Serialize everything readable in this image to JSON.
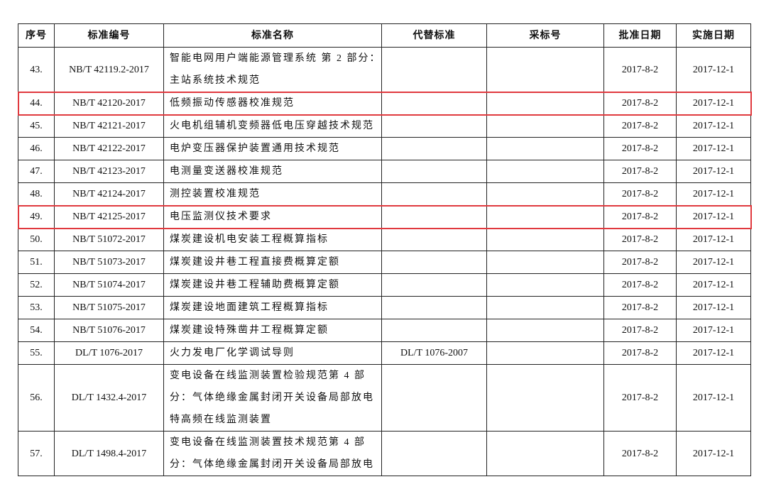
{
  "table": {
    "header": [
      "序号",
      "标准编号",
      "标准名称",
      "代替标准",
      "采标号",
      "批准日期",
      "实施日期"
    ],
    "rows": [
      {
        "no": "43.",
        "code": "NB/T 42119.2-2017",
        "name": [
          "智能电网用户端能源管理系统 第 2 部分：",
          "主站系统技术规范"
        ],
        "approved": "2017-8-2",
        "effective": "2017-12-1"
      },
      {
        "no": "44.",
        "code": "NB/T 42120-2017",
        "name": [
          "低频振动传感器校准规范"
        ],
        "approved": "2017-8-2",
        "effective": "2017-12-1"
      },
      {
        "no": "45.",
        "code": "NB/T 42121-2017",
        "name": [
          "火电机组辅机变频器低电压穿越技术规范"
        ],
        "approved": "2017-8-2",
        "effective": "2017-12-1"
      },
      {
        "no": "46.",
        "code": "NB/T 42122-2017",
        "name": [
          "电炉变压器保护装置通用技术规范"
        ],
        "approved": "2017-8-2",
        "effective": "2017-12-1"
      },
      {
        "no": "47.",
        "code": "NB/T 42123-2017",
        "name": [
          "电测量变送器校准规范"
        ],
        "approved": "2017-8-2",
        "effective": "2017-12-1"
      },
      {
        "no": "48.",
        "code": "NB/T 42124-2017",
        "name": [
          "测控装置校准规范"
        ],
        "approved": "2017-8-2",
        "effective": "2017-12-1"
      },
      {
        "no": "49.",
        "code": "NB/T 42125-2017",
        "name": [
          "电压监测仪技术要求"
        ],
        "approved": "2017-8-2",
        "effective": "2017-12-1"
      },
      {
        "no": "50.",
        "code": "NB/T 51072-2017",
        "name": [
          "煤炭建设机电安装工程概算指标"
        ],
        "approved": "2017-8-2",
        "effective": "2017-12-1"
      },
      {
        "no": "51.",
        "code": "NB/T 51073-2017",
        "name": [
          "煤炭建设井巷工程直接费概算定额"
        ],
        "approved": "2017-8-2",
        "effective": "2017-12-1"
      },
      {
        "no": "52.",
        "code": "NB/T 51074-2017",
        "name": [
          "煤炭建设井巷工程辅助费概算定额"
        ],
        "approved": "2017-8-2",
        "effective": "2017-12-1"
      },
      {
        "no": "53.",
        "code": "NB/T 51075-2017",
        "name": [
          "煤炭建设地面建筑工程概算指标"
        ],
        "approved": "2017-8-2",
        "effective": "2017-12-1"
      },
      {
        "no": "54.",
        "code": "NB/T 51076-2017",
        "name": [
          "煤炭建设特殊凿井工程概算定额"
        ],
        "approved": "2017-8-2",
        "effective": "2017-12-1"
      },
      {
        "no": "55.",
        "code": "DL/T 1076-2017",
        "name": [
          "火力发电厂化学调试导则"
        ],
        "replaces": "DL/T 1076-2007",
        "approved": "2017-8-2",
        "effective": "2017-12-1"
      },
      {
        "no": "56.",
        "code": "DL/T 1432.4-2017",
        "name": [
          "变电设备在线监测装置检验规范第 4 部",
          "分：气体绝缘金属封闭开关设备局部放电",
          "特高频在线监测装置"
        ],
        "approved": "2017-8-2",
        "effective": "2017-12-1"
      },
      {
        "no": "57.",
        "code": "DL/T 1498.4-2017",
        "name": [
          "变电设备在线监测装置技术规范第 4 部",
          "分：气体绝缘金属封闭开关设备局部放电"
        ],
        "approved": "2017-8-2",
        "effective": "2017-12-1"
      }
    ]
  }
}
